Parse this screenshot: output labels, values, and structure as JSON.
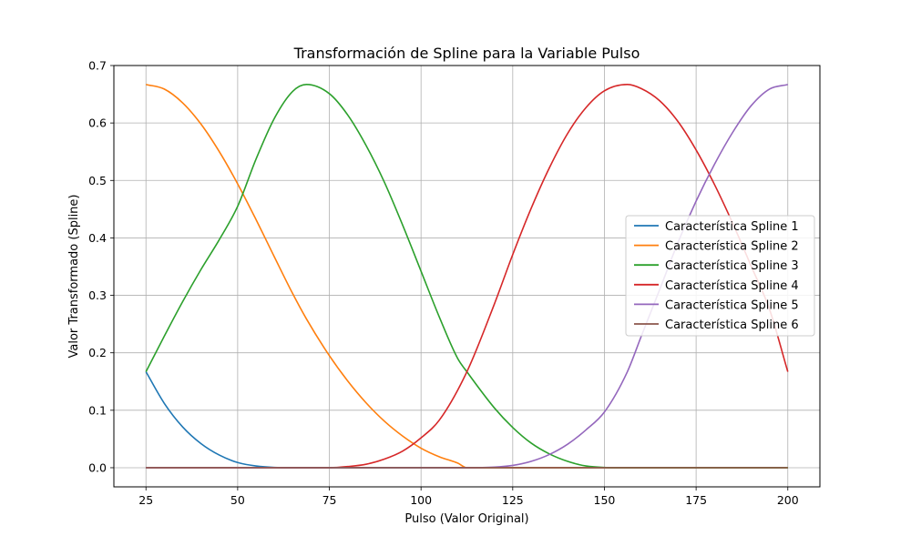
{
  "chart_data": {
    "type": "line",
    "title": "Transformación de Spline para la Variable Pulso",
    "xlabel": "Pulso (Valor Original)",
    "ylabel": "Valor Transformado (Spline)",
    "xlim": [
      16.25,
      208.75
    ],
    "ylim": [
      -0.0333,
      0.7
    ],
    "grid": true,
    "legend_position": "center-right",
    "xticks": [
      25,
      50,
      75,
      100,
      125,
      150,
      175,
      200
    ],
    "yticks": [
      0.0,
      0.1,
      0.2,
      0.3,
      0.4,
      0.5,
      0.6,
      0.7
    ],
    "xtick_labels": [
      "25",
      "50",
      "75",
      "100",
      "125",
      "150",
      "175",
      "200"
    ],
    "ytick_labels": [
      "0.0",
      "0.1",
      "0.2",
      "0.3",
      "0.4",
      "0.5",
      "0.6",
      "0.7"
    ],
    "knots": [
      25,
      68.75,
      112.5,
      156.25,
      200
    ],
    "series": [
      {
        "name": "Característica Spline 1",
        "color": "#1f77b4",
        "x": [
          25,
          30,
          35,
          40,
          45,
          50,
          55,
          60,
          65,
          68.75,
          200
        ],
        "y": [
          0.167,
          0.112,
          0.071,
          0.042,
          0.022,
          0.009,
          0.003,
          0.0005,
          2e-05,
          0.0,
          0.0
        ]
      },
      {
        "name": "Característica Spline 2",
        "color": "#ff7f0e",
        "x": [
          25,
          30,
          35,
          40,
          45,
          50,
          55,
          60,
          65,
          68.75,
          75,
          80,
          85,
          90,
          95,
          100,
          105,
          110,
          112.5,
          200
        ],
        "y": [
          0.667,
          0.659,
          0.635,
          0.598,
          0.55,
          0.494,
          0.432,
          0.367,
          0.303,
          0.259,
          0.195,
          0.151,
          0.113,
          0.081,
          0.055,
          0.034,
          0.019,
          0.008,
          0.0,
          0.0
        ]
      },
      {
        "name": "Característica Spline 3",
        "color": "#2ca02c",
        "x": [
          25,
          30,
          35,
          40,
          45,
          50,
          55,
          60,
          65,
          68.75,
          75,
          80,
          85,
          90,
          95,
          100,
          105,
          110,
          112.5,
          120,
          125,
          130,
          135,
          140,
          145,
          150,
          156.25,
          200
        ],
        "y": [
          0.167,
          0.229,
          0.289,
          0.345,
          0.397,
          0.455,
          0.537,
          0.608,
          0.655,
          0.667,
          0.651,
          0.614,
          0.561,
          0.497,
          0.422,
          0.342,
          0.262,
          0.19,
          0.167,
          0.104,
          0.07,
          0.043,
          0.024,
          0.011,
          0.003,
          0.0005,
          0.0,
          0.0
        ]
      },
      {
        "name": "Característica Spline 4",
        "color": "#d62728",
        "x": [
          25,
          68.75,
          75,
          80,
          85,
          90,
          95,
          100,
          105,
          112.5,
          120,
          125,
          130,
          135,
          140,
          145,
          150,
          156.25,
          160,
          165,
          170,
          175,
          180,
          185,
          190,
          195,
          200
        ],
        "y": [
          0.0,
          0.0,
          0.0,
          0.002,
          0.006,
          0.015,
          0.029,
          0.052,
          0.083,
          0.167,
          0.285,
          0.371,
          0.451,
          0.522,
          0.582,
          0.627,
          0.656,
          0.667,
          0.66,
          0.639,
          0.603,
          0.553,
          0.493,
          0.425,
          0.351,
          0.276,
          0.167
        ]
      },
      {
        "name": "Característica Spline 5",
        "color": "#9467bd",
        "x": [
          25,
          112.5,
          120,
          125,
          130,
          135,
          140,
          145,
          150,
          156.25,
          160,
          165,
          170,
          175,
          180,
          185,
          190,
          195,
          200
        ],
        "y": [
          0.0,
          0.0,
          0.001,
          0.004,
          0.011,
          0.023,
          0.041,
          0.066,
          0.097,
          0.167,
          0.228,
          0.309,
          0.391,
          0.464,
          0.528,
          0.584,
          0.63,
          0.659,
          0.667
        ]
      },
      {
        "name": "Característica Spline 6",
        "color": "#8c564b",
        "x": [
          25,
          156.25,
          160,
          165,
          170,
          175,
          180,
          185,
          190,
          195,
          200
        ],
        "y": [
          0.0,
          0.0,
          0.0,
          0.0,
          0.0,
          0.0,
          0.0,
          0.0,
          0.0,
          0.0,
          0.0
        ]
      }
    ]
  }
}
